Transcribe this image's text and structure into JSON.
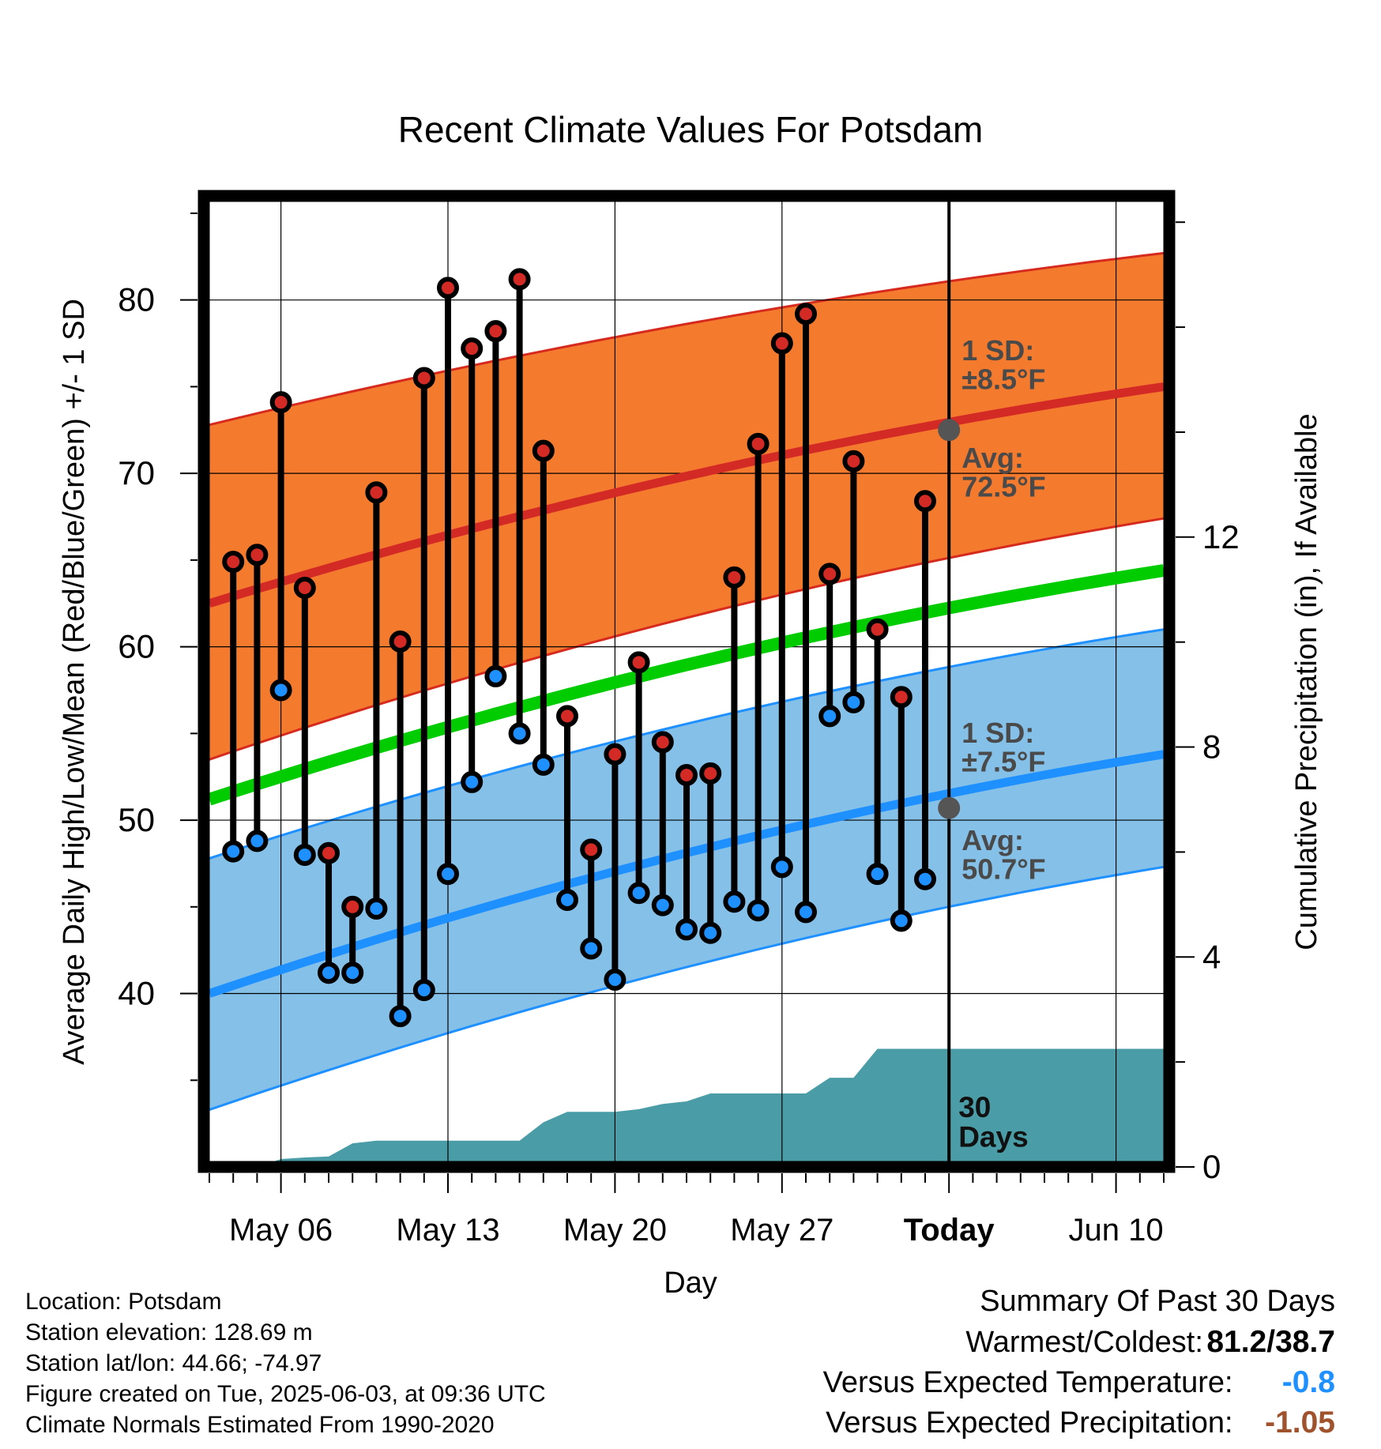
{
  "chart_data": {
    "type": "line",
    "title": "Recent Climate Values For Potsdam",
    "xlabel": "Day",
    "ylabel": "Average Daily High/Low/Mean (Red/Blue/Green) +/- 1 SD",
    "y2label": "Cumulative Precipitation (in), If Available",
    "x_tick_labels": [
      "May 06",
      "May 13",
      "May 20",
      "May 27",
      "Today",
      "Jun 10"
    ],
    "x_tick_dates": [
      "2025-05-06",
      "2025-05-13",
      "2025-05-20",
      "2025-05-27",
      "2025-06-03",
      "2025-06-10"
    ],
    "xlim": [
      "2025-05-03",
      "2025-06-12"
    ],
    "ylim": [
      30,
      86
    ],
    "y_ticks": [
      40,
      50,
      60,
      70,
      80
    ],
    "y2lim": [
      0,
      18.5
    ],
    "y2_ticks": [
      0,
      4,
      8,
      12
    ],
    "today": "2025-06-03",
    "days_label": "30\nDays",
    "normals": {
      "dates": [
        "2025-05-03",
        "2025-06-12"
      ],
      "high_mean": [
        62.5,
        75.0
      ],
      "low_mean": [
        40.0,
        53.8
      ],
      "mean": [
        51.2,
        64.4
      ],
      "high_upper": [
        72.8,
        82.7
      ],
      "high_lower": [
        53.5,
        67.4
      ],
      "low_upper": [
        47.8,
        61.0
      ],
      "low_lower": [
        33.3,
        47.3
      ]
    },
    "annotations": {
      "high_sd": "1 SD:\n±8.5°F",
      "high_avg": "Avg:\n72.5°F",
      "low_sd": "1 SD:\n±7.5°F",
      "low_avg": "Avg:\n50.7°F",
      "high_avg_value": 72.5,
      "low_avg_value": 50.7
    },
    "series": [
      {
        "name": "High",
        "dates": [
          "2025-05-04",
          "2025-05-05",
          "2025-05-06",
          "2025-05-07",
          "2025-05-08",
          "2025-05-09",
          "2025-05-10",
          "2025-05-11",
          "2025-05-12",
          "2025-05-13",
          "2025-05-14",
          "2025-05-15",
          "2025-05-16",
          "2025-05-17",
          "2025-05-18",
          "2025-05-19",
          "2025-05-20",
          "2025-05-21",
          "2025-05-22",
          "2025-05-23",
          "2025-05-24",
          "2025-05-25",
          "2025-05-26",
          "2025-05-27",
          "2025-05-28",
          "2025-05-29",
          "2025-05-30",
          "2025-05-31",
          "2025-06-01",
          "2025-06-02"
        ],
        "values": [
          64.9,
          65.3,
          74.1,
          63.4,
          48.1,
          45.0,
          68.9,
          60.3,
          75.5,
          80.7,
          77.2,
          78.2,
          81.2,
          71.3,
          56.0,
          48.3,
          53.8,
          59.1,
          54.5,
          52.6,
          52.7,
          64.0,
          71.7,
          77.5,
          79.2,
          64.2,
          70.7,
          61.0,
          57.1,
          68.4
        ]
      },
      {
        "name": "Low",
        "dates": [
          "2025-05-04",
          "2025-05-05",
          "2025-05-06",
          "2025-05-07",
          "2025-05-08",
          "2025-05-09",
          "2025-05-10",
          "2025-05-11",
          "2025-05-12",
          "2025-05-13",
          "2025-05-14",
          "2025-05-15",
          "2025-05-16",
          "2025-05-17",
          "2025-05-18",
          "2025-05-19",
          "2025-05-20",
          "2025-05-21",
          "2025-05-22",
          "2025-05-23",
          "2025-05-24",
          "2025-05-25",
          "2025-05-26",
          "2025-05-27",
          "2025-05-28",
          "2025-05-29",
          "2025-05-30",
          "2025-05-31",
          "2025-06-01",
          "2025-06-02"
        ],
        "values": [
          48.2,
          48.8,
          57.5,
          48.0,
          41.2,
          41.2,
          44.9,
          38.7,
          40.2,
          46.9,
          52.2,
          58.3,
          55.0,
          53.2,
          45.4,
          42.6,
          40.8,
          45.8,
          45.1,
          43.7,
          43.5,
          45.3,
          44.8,
          47.3,
          44.7,
          56.0,
          56.8,
          46.9,
          44.2,
          46.6
        ]
      },
      {
        "name": "Cumulative Precipitation",
        "axis": "right",
        "dates": [
          "2025-05-03",
          "2025-05-04",
          "2025-05-05",
          "2025-05-06",
          "2025-05-07",
          "2025-05-08",
          "2025-05-09",
          "2025-05-10",
          "2025-05-11",
          "2025-05-12",
          "2025-05-13",
          "2025-05-14",
          "2025-05-15",
          "2025-05-16",
          "2025-05-17",
          "2025-05-18",
          "2025-05-19",
          "2025-05-20",
          "2025-05-21",
          "2025-05-22",
          "2025-05-23",
          "2025-05-24",
          "2025-05-25",
          "2025-05-26",
          "2025-05-27",
          "2025-05-28",
          "2025-05-29",
          "2025-05-30",
          "2025-05-31",
          "2025-06-01",
          "2025-06-02",
          "2025-06-03",
          "2025-06-12"
        ],
        "values": [
          0,
          0,
          0,
          0.15,
          0.18,
          0.2,
          0.45,
          0.5,
          0.5,
          0.5,
          0.5,
          0.5,
          0.5,
          0.5,
          0.85,
          1.05,
          1.05,
          1.05,
          1.1,
          1.2,
          1.25,
          1.4,
          1.4,
          1.4,
          1.4,
          1.4,
          1.7,
          1.7,
          2.25,
          2.25,
          2.25,
          2.25,
          2.25
        ]
      }
    ],
    "colors": {
      "high_band": "#f47a2e",
      "high_band_edge": "#d62a1e",
      "high_mean": "#d42a26",
      "mean": "#00cc00",
      "low_band": "#84c0e8",
      "low_band_edge": "#1e90ff",
      "low_mean": "#1e90ff",
      "high_dot": "#d42a26",
      "low_dot": "#1e90ff",
      "precip": "#4a9da6",
      "annotation": "#4a4a4a"
    }
  },
  "footer": {
    "location": "Location: Potsdam",
    "elevation": "Station elevation: 128.69 m",
    "latlon": "Station lat/lon: 44.66; -74.97",
    "created": "Figure created on Tue, 2025-06-03, at 09:36 UTC",
    "normals": "Climate Normals Estimated From 1990-2020"
  },
  "summary": {
    "heading": "Summary Of Past 30 Days",
    "warm_cold_label": "Warmest/Coldest:",
    "warm_cold_value": "81.2/38.7",
    "temp_label": "Versus Expected Temperature:",
    "temp_value": "-0.8",
    "temp_color": "#1e90ff",
    "precip_label": "Versus Expected Precipitation:",
    "precip_value": "-1.05",
    "precip_color": "#a0522d"
  }
}
